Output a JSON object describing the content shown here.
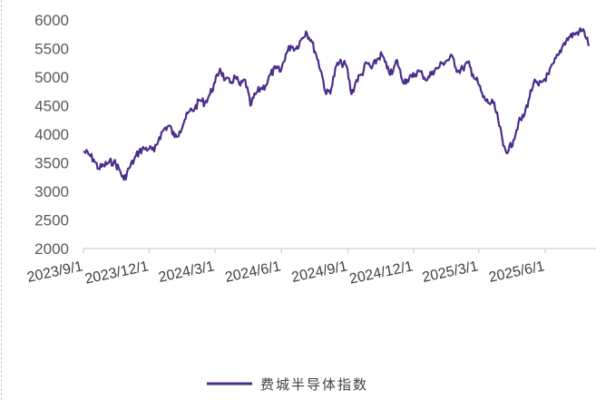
{
  "chart_data": {
    "type": "line",
    "title": "",
    "xlabel": "",
    "ylabel": "",
    "ylim": [
      2000,
      6000
    ],
    "yticks": [
      "2000",
      "2500",
      "3000",
      "3500",
      "4000",
      "4500",
      "5000",
      "5500",
      "6000"
    ],
    "xticks": [
      "2023/9/1",
      "2023/12/1",
      "2024/3/1",
      "2024/6/1",
      "2024/9/1",
      "2024/12/1",
      "2025/3/1",
      "2025/6/1"
    ],
    "grid": false,
    "legend": "bottom",
    "series": [
      {
        "name": "费城半导体指数",
        "color": "#4b2d8c",
        "points": [
          [
            "2023-09-01",
            3700
          ],
          [
            "2023-09-08",
            3650
          ],
          [
            "2023-09-15",
            3560
          ],
          [
            "2023-09-22",
            3400
          ],
          [
            "2023-09-29",
            3450
          ],
          [
            "2023-10-06",
            3500
          ],
          [
            "2023-10-13",
            3520
          ],
          [
            "2023-10-20",
            3400
          ],
          [
            "2023-10-27",
            3200
          ],
          [
            "2023-11-03",
            3400
          ],
          [
            "2023-11-10",
            3550
          ],
          [
            "2023-11-17",
            3700
          ],
          [
            "2023-11-24",
            3750
          ],
          [
            "2023-12-01",
            3750
          ],
          [
            "2023-12-08",
            3700
          ],
          [
            "2023-12-15",
            3950
          ],
          [
            "2023-12-22",
            4100
          ],
          [
            "2023-12-29",
            4150
          ],
          [
            "2024-01-05",
            3950
          ],
          [
            "2024-01-12",
            4050
          ],
          [
            "2024-01-19",
            4250
          ],
          [
            "2024-01-26",
            4400
          ],
          [
            "2024-02-02",
            4450
          ],
          [
            "2024-02-09",
            4600
          ],
          [
            "2024-02-16",
            4550
          ],
          [
            "2024-02-23",
            4700
          ],
          [
            "2024-03-01",
            4900
          ],
          [
            "2024-03-08",
            5150
          ],
          [
            "2024-03-15",
            4950
          ],
          [
            "2024-03-22",
            4900
          ],
          [
            "2024-03-29",
            5000
          ],
          [
            "2024-04-05",
            4850
          ],
          [
            "2024-04-12",
            4950
          ],
          [
            "2024-04-19",
            4500
          ],
          [
            "2024-04-26",
            4700
          ],
          [
            "2024-05-03",
            4800
          ],
          [
            "2024-05-10",
            4850
          ],
          [
            "2024-05-17",
            5050
          ],
          [
            "2024-05-24",
            5150
          ],
          [
            "2024-05-31",
            5100
          ],
          [
            "2024-06-07",
            5400
          ],
          [
            "2024-06-14",
            5550
          ],
          [
            "2024-06-21",
            5500
          ],
          [
            "2024-06-28",
            5650
          ],
          [
            "2024-07-05",
            5800
          ],
          [
            "2024-07-12",
            5650
          ],
          [
            "2024-07-19",
            5400
          ],
          [
            "2024-07-26",
            5100
          ],
          [
            "2024-08-02",
            4700
          ],
          [
            "2024-08-09",
            4800
          ],
          [
            "2024-08-16",
            5200
          ],
          [
            "2024-08-23",
            5250
          ],
          [
            "2024-08-30",
            5200
          ],
          [
            "2024-09-06",
            4700
          ],
          [
            "2024-09-13",
            4950
          ],
          [
            "2024-09-20",
            5050
          ],
          [
            "2024-09-27",
            5250
          ],
          [
            "2024-10-04",
            5150
          ],
          [
            "2024-10-11",
            5300
          ],
          [
            "2024-10-18",
            5400
          ],
          [
            "2024-10-25",
            5150
          ],
          [
            "2024-11-01",
            5050
          ],
          [
            "2024-11-08",
            5300
          ],
          [
            "2024-11-15",
            4950
          ],
          [
            "2024-11-22",
            4950
          ],
          [
            "2024-11-29",
            5000
          ],
          [
            "2024-12-06",
            5100
          ],
          [
            "2024-12-13",
            5050
          ],
          [
            "2024-12-20",
            4950
          ],
          [
            "2024-12-27",
            5100
          ],
          [
            "2025-01-03",
            5150
          ],
          [
            "2025-01-10",
            5250
          ],
          [
            "2025-01-17",
            5300
          ],
          [
            "2025-01-24",
            5350
          ],
          [
            "2025-01-31",
            5100
          ],
          [
            "2025-02-07",
            5150
          ],
          [
            "2025-02-14",
            5250
          ],
          [
            "2025-02-21",
            5050
          ],
          [
            "2025-02-28",
            4900
          ],
          [
            "2025-03-07",
            4650
          ],
          [
            "2025-03-14",
            4550
          ],
          [
            "2025-03-21",
            4550
          ],
          [
            "2025-03-28",
            4250
          ],
          [
            "2025-04-04",
            3800
          ],
          [
            "2025-04-11",
            3700
          ],
          [
            "2025-04-18",
            3900
          ],
          [
            "2025-04-25",
            4200
          ],
          [
            "2025-05-02",
            4300
          ],
          [
            "2025-05-09",
            4600
          ],
          [
            "2025-05-16",
            4900
          ],
          [
            "2025-05-23",
            4850
          ],
          [
            "2025-05-30",
            4950
          ],
          [
            "2025-06-06",
            5050
          ],
          [
            "2025-06-13",
            5250
          ],
          [
            "2025-06-20",
            5400
          ],
          [
            "2025-06-27",
            5600
          ],
          [
            "2025-07-04",
            5700
          ],
          [
            "2025-07-11",
            5750
          ],
          [
            "2025-07-18",
            5800
          ],
          [
            "2025-07-25",
            5800
          ],
          [
            "2025-08-01",
            5550
          ]
        ]
      }
    ]
  }
}
